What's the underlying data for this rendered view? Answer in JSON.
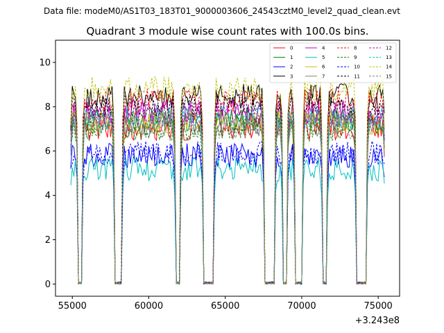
{
  "chart_data": {
    "type": "line",
    "suptitle": "Data file: modeM0/AS1T03_183T01_9000003606_24543cztM0_level2_quad_clean.evt",
    "title": "Quadrant 3 module wise count rates with 100.0s bins.",
    "xlabel": "",
    "ylabel": "",
    "offset_text": "+3.243e8",
    "x_ticks": [
      55000,
      60000,
      65000,
      70000,
      75000
    ],
    "x_tick_labels": [
      "55000",
      "60000",
      "65000",
      "70000",
      "75000"
    ],
    "y_ticks": [
      0,
      2,
      4,
      6,
      8,
      10
    ],
    "y_tick_labels": [
      "0",
      "2",
      "4",
      "6",
      "8",
      "10"
    ],
    "xlim": [
      53900,
      76400
    ],
    "ylim": [
      -0.55,
      11.0
    ],
    "grid": false,
    "legend_location": "top-right",
    "legend_columns": 4,
    "gaps": [
      [
        55400,
        55600
      ],
      [
        57800,
        58200
      ],
      [
        61800,
        62000
      ],
      [
        63600,
        64200
      ],
      [
        67600,
        68200
      ],
      [
        68800,
        69000
      ],
      [
        69600,
        70000
      ],
      [
        71400,
        71600
      ],
      [
        73600,
        74200
      ]
    ],
    "segments": [
      [
        54900,
        55300
      ],
      [
        55700,
        57700
      ],
      [
        58300,
        61700
      ],
      [
        62100,
        63500
      ],
      [
        64300,
        67500
      ],
      [
        68300,
        68700
      ],
      [
        69100,
        69500
      ],
      [
        70100,
        71300
      ],
      [
        71700,
        73500
      ],
      [
        74300,
        75400
      ]
    ],
    "series": [
      {
        "name": "0",
        "color": "#ff0000",
        "dashed": false,
        "level": 7.0
      },
      {
        "name": "1",
        "color": "#008000",
        "dashed": false,
        "level": 7.4
      },
      {
        "name": "2",
        "color": "#0000ff",
        "dashed": false,
        "level": 5.8
      },
      {
        "name": "3",
        "color": "#000000",
        "dashed": false,
        "level": 8.5
      },
      {
        "name": "4",
        "color": "#bf00bf",
        "dashed": false,
        "level": 7.8
      },
      {
        "name": "5",
        "color": "#00bfbf",
        "dashed": false,
        "level": 5.2
      },
      {
        "name": "6",
        "color": "#bfbf00",
        "dashed": false,
        "level": 7.3
      },
      {
        "name": "7",
        "color": "#808080",
        "dashed": false,
        "level": 7.2
      },
      {
        "name": "8",
        "color": "#ff0000",
        "dashed": true,
        "level": 8.3
      },
      {
        "name": "9",
        "color": "#008000",
        "dashed": true,
        "level": 7.0
      },
      {
        "name": "10",
        "color": "#0000ff",
        "dashed": true,
        "level": 5.9
      },
      {
        "name": "11",
        "color": "#000000",
        "dashed": true,
        "level": 8.0
      },
      {
        "name": "12",
        "color": "#bf00bf",
        "dashed": true,
        "level": 7.7
      },
      {
        "name": "13",
        "color": "#00bfbf",
        "dashed": true,
        "level": 7.5
      },
      {
        "name": "14",
        "color": "#bfbf00",
        "dashed": true,
        "level": 8.8
      },
      {
        "name": "15",
        "color": "#808080",
        "dashed": true,
        "level": 7.1
      }
    ]
  }
}
